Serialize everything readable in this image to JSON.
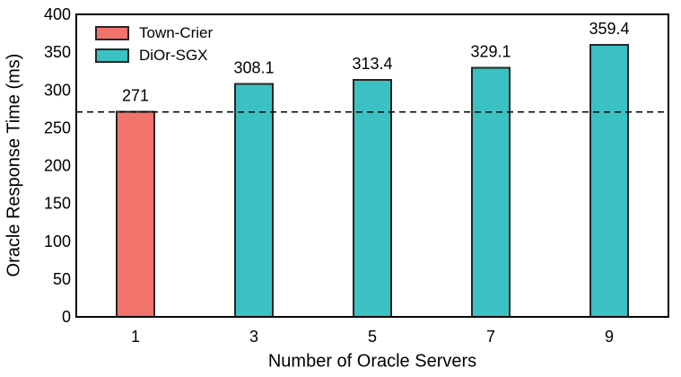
{
  "figure": {
    "background": "#ffffff"
  },
  "chart_data": {
    "type": "bar",
    "title": "",
    "xlabel": "Number of Oracle Servers",
    "ylabel": "Oracle Response Time (ms)",
    "categories": [
      "1",
      "3",
      "5",
      "7",
      "9"
    ],
    "ylim": [
      0,
      400
    ],
    "yticks": [
      0,
      50,
      100,
      150,
      200,
      250,
      300,
      350,
      400
    ],
    "grid": false,
    "legend_position": "top-left-inside",
    "series": [
      {
        "name": "Town-Crier",
        "color": "#F0746C",
        "values": [
          271,
          null,
          null,
          null,
          null
        ]
      },
      {
        "name": "DiOr-SGX",
        "color": "#3BC1C3",
        "values": [
          null,
          308.1,
          313.4,
          329.1,
          359.4
        ]
      }
    ],
    "bars": [
      {
        "category": "1",
        "value": 271,
        "label": "271",
        "series": "Town-Crier"
      },
      {
        "category": "3",
        "value": 308.1,
        "label": "308.1",
        "series": "DiOr-SGX"
      },
      {
        "category": "5",
        "value": 313.4,
        "label": "313.4",
        "series": "DiOr-SGX"
      },
      {
        "category": "7",
        "value": 329.1,
        "label": "329.1",
        "series": "DiOr-SGX"
      },
      {
        "category": "9",
        "value": 359.4,
        "label": "359.4",
        "series": "DiOr-SGX"
      }
    ],
    "reference_line": {
      "value": 271,
      "style": "dashed",
      "color": "#000000"
    }
  },
  "colors": {
    "axis": "#000000",
    "bar_border": "#262626",
    "text": "#000000"
  }
}
